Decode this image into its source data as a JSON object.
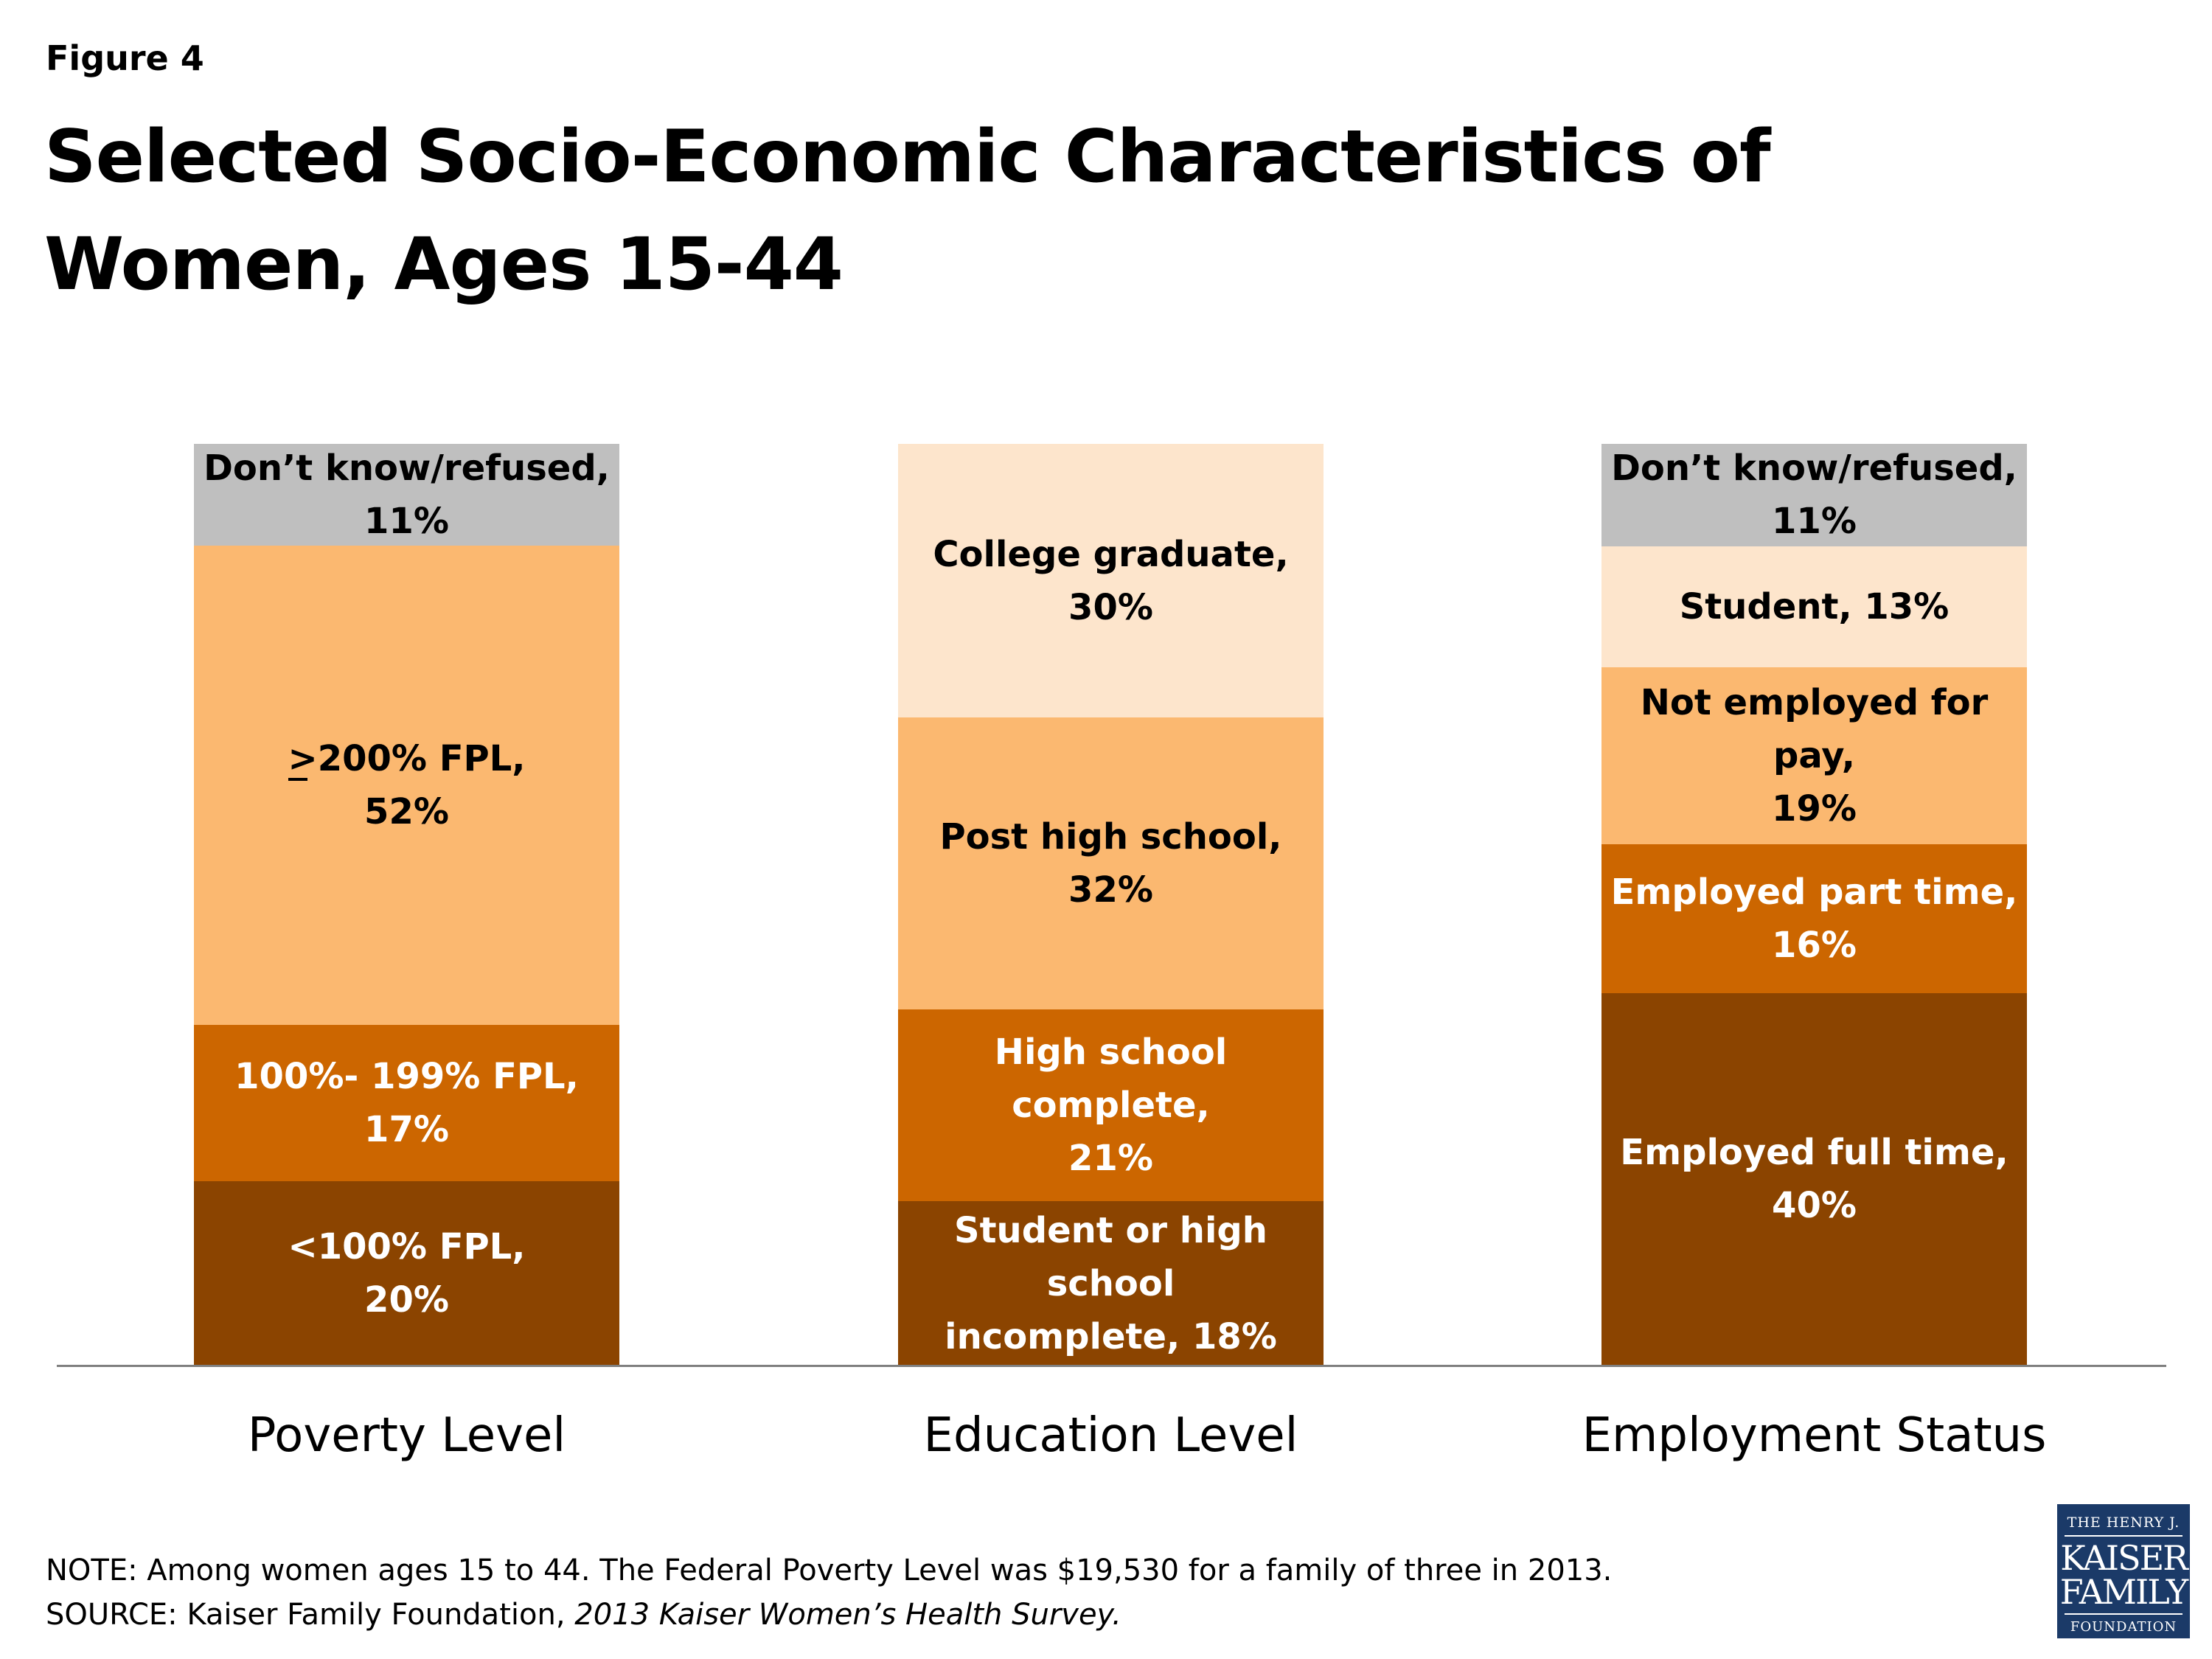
{
  "figure_label": "Figure 4",
  "title": "Selected Socio-Economic Characteristics of Women, Ages 15-44",
  "chart_data": {
    "type": "bar",
    "stacked": true,
    "unit": "%",
    "categories": [
      "Poverty Level",
      "Education Level",
      "Employment Status"
    ],
    "bars": [
      {
        "category": "Poverty Level",
        "segments": [
          {
            "name": "<100% FPL",
            "value": 20,
            "label": "<100% FPL,\n20%",
            "color": "#8b4400"
          },
          {
            "name": "100%- 199% FPL",
            "value": 17,
            "label": "100%- 199% FPL,\n17%",
            "color": "#cc6600"
          },
          {
            "name": ">200% FPL",
            "value": 52,
            "label": ">200% FPL,\n52%",
            "underline_first_char": true,
            "color": "#fbb870"
          },
          {
            "name": "Don't know/refused",
            "value": 11,
            "label": "Don’t know/refused,\n11%",
            "color": "#bfbfbf"
          }
        ]
      },
      {
        "category": "Education Level",
        "segments": [
          {
            "name": "Student or high school incomplete",
            "value": 18,
            "label": "Student or high school\nincomplete, 18%",
            "color": "#8b4400"
          },
          {
            "name": "High school complete",
            "value": 21,
            "label": "High school complete,\n21%",
            "color": "#cc6600"
          },
          {
            "name": "Post high school",
            "value": 32,
            "label": "Post high school,\n32%",
            "color": "#fbb870"
          },
          {
            "name": "College graduate",
            "value": 30,
            "label": "College graduate,\n30%",
            "color": "#fde5cc"
          }
        ]
      },
      {
        "category": "Employment Status",
        "segments": [
          {
            "name": "Employed full time",
            "value": 40,
            "label": "Employed full time,\n40%",
            "color": "#8b4400"
          },
          {
            "name": "Employed part time",
            "value": 16,
            "label": "Employed part time,\n16%",
            "color": "#cc6600"
          },
          {
            "name": "Not employed for pay",
            "value": 19,
            "label": "Not employed for pay,\n19%",
            "color": "#fbb870"
          },
          {
            "name": "Student",
            "value": 13,
            "label": "Student, 13%",
            "color": "#fde5cc"
          },
          {
            "name": "Don't know/refused",
            "value": 11,
            "label": "Don’t know/refused,\n11%",
            "color": "#bfbfbf"
          }
        ]
      }
    ],
    "ylim": [
      0,
      100
    ],
    "grid": false,
    "legend": "none"
  },
  "note": "NOTE: Among women ages 15 to 44. The Federal Poverty Level was $19,530 for a family of three in 2013.",
  "source_prefix": "SOURCE: Kaiser Family Foundation, ",
  "source_title": "2013 Kaiser Women’s Health Survey.",
  "logo": {
    "line1": "THE HENRY J.",
    "line2": "KAISER",
    "line3": "FAMILY",
    "line4": "FOUNDATION"
  }
}
